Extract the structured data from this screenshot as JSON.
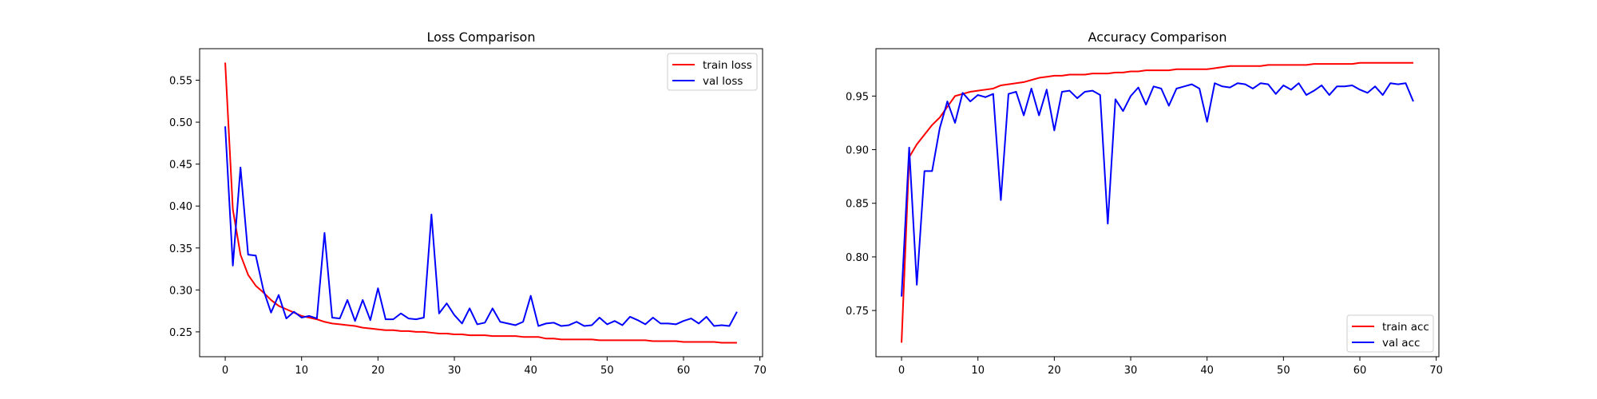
{
  "chart_data": [
    {
      "type": "line",
      "title": "Loss Comparison",
      "xlabel": "",
      "ylabel": "",
      "xlim": [
        -3.35,
        70.35
      ],
      "ylim": [
        0.2204,
        0.5876
      ],
      "xticks": [
        0,
        10,
        20,
        30,
        40,
        50,
        60,
        70
      ],
      "yticks": [
        0.25,
        0.3,
        0.35,
        0.4,
        0.45,
        0.5,
        0.55
      ],
      "ytick_decimals": 2,
      "grid": false,
      "legend": "top-right",
      "series": [
        {
          "name": "train loss",
          "color": "#ff0000",
          "x": [
            0,
            1,
            2,
            3,
            4,
            5,
            6,
            7,
            8,
            9,
            10,
            11,
            12,
            13,
            14,
            15,
            16,
            17,
            18,
            19,
            20,
            21,
            22,
            23,
            24,
            25,
            26,
            27,
            28,
            29,
            30,
            31,
            32,
            33,
            34,
            35,
            36,
            37,
            38,
            39,
            40,
            41,
            42,
            43,
            44,
            45,
            46,
            47,
            48,
            49,
            50,
            51,
            52,
            53,
            54,
            55,
            56,
            57,
            58,
            59,
            60,
            61,
            62,
            63,
            64,
            65,
            66,
            67
          ],
          "values": [
            0.571,
            0.396,
            0.342,
            0.318,
            0.305,
            0.297,
            0.288,
            0.281,
            0.277,
            0.273,
            0.269,
            0.267,
            0.265,
            0.262,
            0.26,
            0.259,
            0.258,
            0.257,
            0.255,
            0.254,
            0.253,
            0.252,
            0.252,
            0.251,
            0.251,
            0.25,
            0.25,
            0.249,
            0.248,
            0.248,
            0.247,
            0.247,
            0.246,
            0.246,
            0.246,
            0.245,
            0.245,
            0.245,
            0.245,
            0.244,
            0.244,
            0.244,
            0.242,
            0.242,
            0.241,
            0.241,
            0.241,
            0.241,
            0.241,
            0.24,
            0.24,
            0.24,
            0.24,
            0.24,
            0.24,
            0.24,
            0.239,
            0.239,
            0.239,
            0.239,
            0.238,
            0.238,
            0.238,
            0.238,
            0.238,
            0.237,
            0.237,
            0.237
          ]
        },
        {
          "name": "val loss",
          "color": "#0000ff",
          "x": [
            0,
            1,
            2,
            3,
            4,
            5,
            6,
            7,
            8,
            9,
            10,
            11,
            12,
            13,
            14,
            15,
            16,
            17,
            18,
            19,
            20,
            21,
            22,
            23,
            24,
            25,
            26,
            27,
            28,
            29,
            30,
            31,
            32,
            33,
            34,
            35,
            36,
            37,
            38,
            39,
            40,
            41,
            42,
            43,
            44,
            45,
            46,
            47,
            48,
            49,
            50,
            51,
            52,
            53,
            54,
            55,
            56,
            57,
            58,
            59,
            60,
            61,
            62,
            63,
            64,
            65,
            66,
            67
          ],
          "values": [
            0.495,
            0.329,
            0.446,
            0.342,
            0.341,
            0.3,
            0.273,
            0.294,
            0.266,
            0.274,
            0.267,
            0.269,
            0.266,
            0.368,
            0.267,
            0.266,
            0.288,
            0.263,
            0.288,
            0.264,
            0.302,
            0.265,
            0.265,
            0.272,
            0.266,
            0.265,
            0.267,
            0.39,
            0.272,
            0.284,
            0.27,
            0.26,
            0.278,
            0.259,
            0.261,
            0.278,
            0.262,
            0.26,
            0.258,
            0.262,
            0.293,
            0.257,
            0.26,
            0.261,
            0.257,
            0.258,
            0.262,
            0.257,
            0.258,
            0.267,
            0.259,
            0.263,
            0.258,
            0.268,
            0.264,
            0.259,
            0.267,
            0.26,
            0.26,
            0.259,
            0.263,
            0.266,
            0.26,
            0.268,
            0.257,
            0.258,
            0.257,
            0.274
          ]
        }
      ]
    },
    {
      "type": "line",
      "title": "Accuracy Comparison",
      "xlabel": "",
      "ylabel": "",
      "xlim": [
        -3.35,
        70.35
      ],
      "ylim": [
        0.7069,
        0.9942
      ],
      "xticks": [
        0,
        10,
        20,
        30,
        40,
        50,
        60,
        70
      ],
      "yticks": [
        0.75,
        0.8,
        0.85,
        0.9,
        0.95
      ],
      "ytick_decimals": 2,
      "grid": false,
      "legend": "bottom-right",
      "series": [
        {
          "name": "train acc",
          "color": "#ff0000",
          "x": [
            0,
            1,
            2,
            3,
            4,
            5,
            6,
            7,
            8,
            9,
            10,
            11,
            12,
            13,
            14,
            15,
            16,
            17,
            18,
            19,
            20,
            21,
            22,
            23,
            24,
            25,
            26,
            27,
            28,
            29,
            30,
            31,
            32,
            33,
            34,
            35,
            36,
            37,
            38,
            39,
            40,
            41,
            42,
            43,
            44,
            45,
            46,
            47,
            48,
            49,
            50,
            51,
            52,
            53,
            54,
            55,
            56,
            57,
            58,
            59,
            60,
            61,
            62,
            63,
            64,
            65,
            66,
            67
          ],
          "values": [
            0.72,
            0.893,
            0.905,
            0.914,
            0.923,
            0.93,
            0.94,
            0.95,
            0.952,
            0.954,
            0.955,
            0.956,
            0.957,
            0.96,
            0.961,
            0.962,
            0.963,
            0.965,
            0.967,
            0.968,
            0.969,
            0.969,
            0.97,
            0.97,
            0.97,
            0.971,
            0.971,
            0.971,
            0.972,
            0.972,
            0.973,
            0.973,
            0.974,
            0.974,
            0.974,
            0.974,
            0.975,
            0.975,
            0.975,
            0.975,
            0.975,
            0.976,
            0.977,
            0.978,
            0.978,
            0.978,
            0.978,
            0.978,
            0.979,
            0.979,
            0.979,
            0.979,
            0.979,
            0.979,
            0.98,
            0.98,
            0.98,
            0.98,
            0.98,
            0.98,
            0.981,
            0.981,
            0.981,
            0.981,
            0.981,
            0.981,
            0.981,
            0.981
          ]
        },
        {
          "name": "val acc",
          "color": "#0000ff",
          "x": [
            0,
            1,
            2,
            3,
            4,
            5,
            6,
            7,
            8,
            9,
            10,
            11,
            12,
            13,
            14,
            15,
            16,
            17,
            18,
            19,
            20,
            21,
            22,
            23,
            24,
            25,
            26,
            27,
            28,
            29,
            30,
            31,
            32,
            33,
            34,
            35,
            36,
            37,
            38,
            39,
            40,
            41,
            42,
            43,
            44,
            45,
            46,
            47,
            48,
            49,
            50,
            51,
            52,
            53,
            54,
            55,
            56,
            57,
            58,
            59,
            60,
            61,
            62,
            63,
            64,
            65,
            66,
            67
          ],
          "values": [
            0.763,
            0.902,
            0.774,
            0.88,
            0.88,
            0.92,
            0.945,
            0.925,
            0.953,
            0.945,
            0.951,
            0.949,
            0.952,
            0.853,
            0.952,
            0.954,
            0.932,
            0.957,
            0.932,
            0.956,
            0.918,
            0.954,
            0.955,
            0.948,
            0.954,
            0.955,
            0.951,
            0.831,
            0.947,
            0.936,
            0.95,
            0.958,
            0.942,
            0.959,
            0.957,
            0.941,
            0.957,
            0.959,
            0.961,
            0.957,
            0.926,
            0.962,
            0.959,
            0.958,
            0.962,
            0.961,
            0.957,
            0.962,
            0.961,
            0.952,
            0.96,
            0.956,
            0.962,
            0.951,
            0.955,
            0.96,
            0.951,
            0.959,
            0.959,
            0.96,
            0.956,
            0.953,
            0.959,
            0.951,
            0.962,
            0.961,
            0.962,
            0.945
          ]
        }
      ]
    }
  ]
}
